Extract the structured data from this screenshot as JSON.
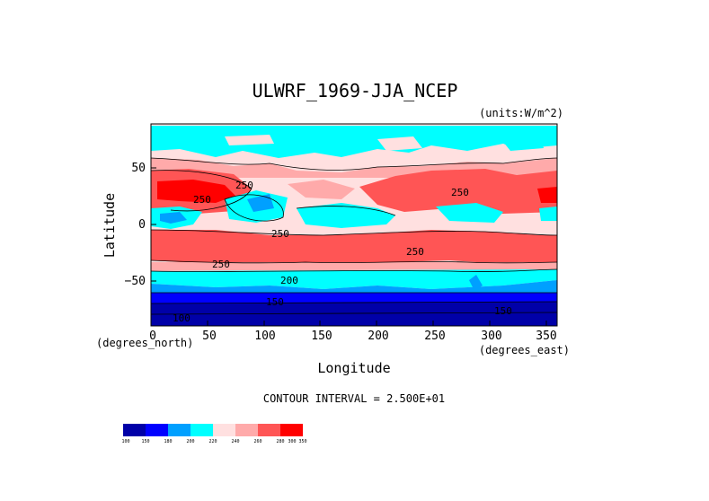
{
  "title": "ULWRF_1969-JJA_NCEP",
  "units": "(units:W/m^2)",
  "x_axis": {
    "label": "Longitude",
    "unit_note": "(degrees_east)",
    "ticks": [
      "0",
      "50",
      "100",
      "150",
      "200",
      "250",
      "300",
      "350"
    ],
    "range": [
      0,
      360
    ]
  },
  "y_axis": {
    "label": "Latitude",
    "unit_note": "(degrees_north)",
    "ticks": [
      "50",
      "0",
      "−50"
    ],
    "range": [
      -90,
      90
    ]
  },
  "contour_interval_text": "CONTOUR INTERVAL = 2.500E+01",
  "contour_labels": [
    "250",
    "250",
    "250",
    "250",
    "250",
    "250",
    "200",
    "150",
    "150",
    "100"
  ],
  "colorbar": {
    "levels": [
      "100",
      "150",
      "180",
      "200",
      "220",
      "240",
      "260",
      "280",
      "300",
      "350"
    ],
    "colors": [
      "#0000a8",
      "#0000ff",
      "#00a0ff",
      "#00ffff",
      "#ffe0e0",
      "#ffaaaa",
      "#ff5555",
      "#ff0000"
    ]
  },
  "palette": {
    "deep_blue": "#0000a8",
    "blue": "#0000ff",
    "mid_blue": "#00a0ff",
    "cyan": "#00ffff",
    "pale_pink": "#ffe0e0",
    "pink": "#ffaaaa",
    "salmon": "#ff5555",
    "red": "#ff0000"
  }
}
